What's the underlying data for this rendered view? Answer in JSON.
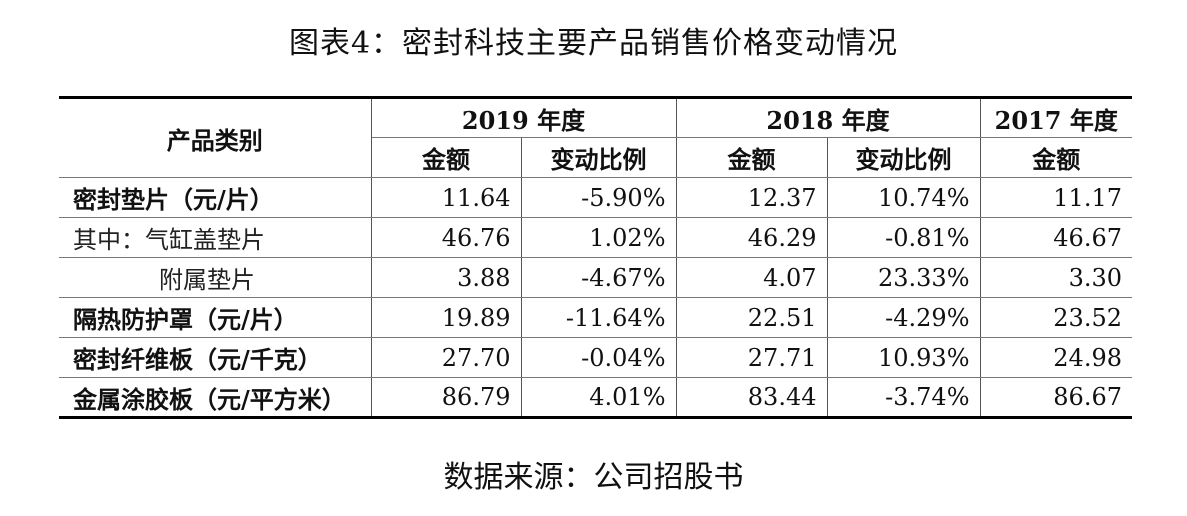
{
  "title": "图表4：密封科技主要产品销售价格变动情况",
  "table": {
    "header_category": "产品类别",
    "years": [
      "2019 年度",
      "2018 年度",
      "2017 年度"
    ],
    "subheaders": [
      "金额",
      "变动比例",
      "金额",
      "变动比例",
      "金额"
    ],
    "rows": [
      {
        "label": "密封垫片（元/片）",
        "values": [
          "11.64",
          "-5.90%",
          "12.37",
          "10.74%",
          "11.17"
        ]
      },
      {
        "label": "其中：气缸盖垫片",
        "values": [
          "46.76",
          "1.02%",
          "46.29",
          "-0.81%",
          "46.67"
        ]
      },
      {
        "label": "附属垫片",
        "values": [
          "3.88",
          "-4.67%",
          "4.07",
          "23.33%",
          "3.30"
        ]
      },
      {
        "label": "隔热防护罩（元/片）",
        "values": [
          "19.89",
          "-11.64%",
          "22.51",
          "-4.29%",
          "23.52"
        ]
      },
      {
        "label": "密封纤维板（元/千克）",
        "values": [
          "27.70",
          "-0.04%",
          "27.71",
          "10.93%",
          "24.98"
        ]
      },
      {
        "label": "金属涂胶板（元/平方米）",
        "values": [
          "86.79",
          "4.01%",
          "83.44",
          "-3.74%",
          "86.67"
        ]
      }
    ]
  },
  "source": "数据来源：公司招股书"
}
